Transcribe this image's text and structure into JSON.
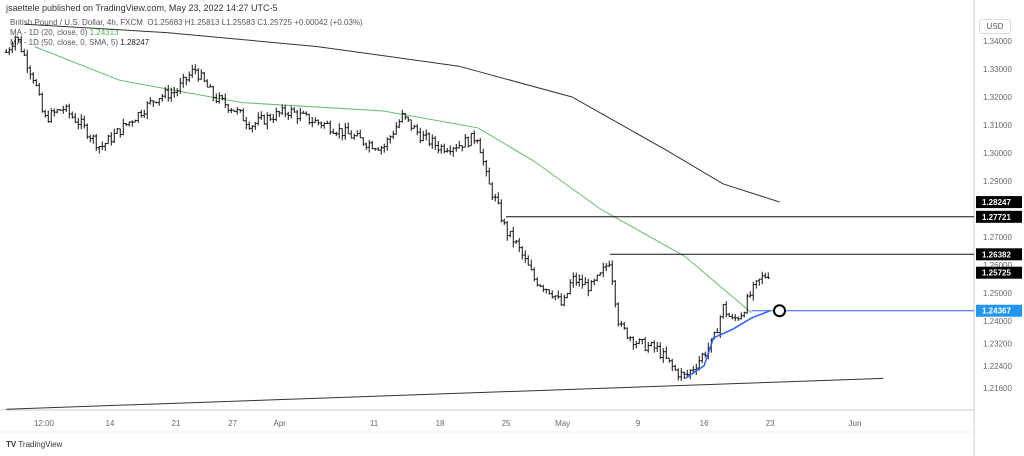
{
  "header": {
    "published": "jsaettele published on TradingView.com, May 23, 2022 14:27 UTC-5",
    "symbol": "British Pound / U.S. Dollar, 4h, FXCM",
    "ohlc": "O1.25683  H1.25813  L1.25583  C1.25725  +0.00042 (+0.03%)",
    "ma1_label": "MA - 1D (20, close, 0)",
    "ma1_value": "1.24313",
    "ma2_label": "MA - 1D (50, close, 0, SMA, 5)",
    "ma2_value": "1.28247"
  },
  "footer": {
    "brand": "TradingView"
  },
  "currency": "USD",
  "colors": {
    "ma20": "#66bb6a",
    "ma50": "#333333",
    "vwap": "#2962ff",
    "tag": "#000000",
    "tag_blue": "#2196f3"
  },
  "chart_data": {
    "type": "ohlc",
    "yaxis_ticks": [
      "1.34000",
      "1.33000",
      "1.32000",
      "1.31000",
      "1.30000",
      "1.29000",
      "1.27000",
      "1.26000",
      "1.25000",
      "1.24000",
      "1.23200",
      "1.22400",
      "1.21600"
    ],
    "xaxis_ticks": [
      {
        "label": "12:00",
        "date": "2022-03-07"
      },
      {
        "label": "14",
        "date": "2022-03-14"
      },
      {
        "label": "21",
        "date": "2022-03-21"
      },
      {
        "label": "27",
        "date": "2022-03-27"
      },
      {
        "label": "Apr",
        "date": "2022-04-01"
      },
      {
        "label": "11",
        "date": "2022-04-11"
      },
      {
        "label": "18",
        "date": "2022-04-18"
      },
      {
        "label": "25",
        "date": "2022-04-25"
      },
      {
        "label": "May",
        "date": "2022-05-01"
      },
      {
        "label": "9",
        "date": "2022-05-09"
      },
      {
        "label": "16",
        "date": "2022-05-16"
      },
      {
        "label": "23",
        "date": "2022-05-23"
      },
      {
        "label": "Jun",
        "date": "2022-06-01"
      }
    ],
    "price_tags": [
      {
        "value": "1.28247",
        "color": "#000000"
      },
      {
        "value": "1.27721",
        "color": "#000000"
      },
      {
        "value": "1.26382",
        "color": "#000000"
      },
      {
        "value": "1.25725",
        "color": "#000000"
      },
      {
        "value": "1.24367",
        "color": "#2196f3"
      }
    ],
    "close_path": [
      [
        "2022-03-03",
        1.336
      ],
      [
        "2022-03-04",
        1.342
      ],
      [
        "2022-03-06",
        1.326
      ],
      [
        "2022-03-07",
        1.312
      ],
      [
        "2022-03-09",
        1.316
      ],
      [
        "2022-03-11",
        1.31
      ],
      [
        "2022-03-13",
        1.302
      ],
      [
        "2022-03-15",
        1.308
      ],
      [
        "2022-03-17",
        1.314
      ],
      [
        "2022-03-19",
        1.32
      ],
      [
        "2022-03-21",
        1.322
      ],
      [
        "2022-03-23",
        1.33
      ],
      [
        "2022-03-25",
        1.32
      ],
      [
        "2022-03-27",
        1.316
      ],
      [
        "2022-03-29",
        1.31
      ],
      [
        "2022-03-31",
        1.313
      ],
      [
        "2022-04-02",
        1.315
      ],
      [
        "2022-04-04",
        1.312
      ],
      [
        "2022-04-06",
        1.31
      ],
      [
        "2022-04-08",
        1.307
      ],
      [
        "2022-04-10",
        1.304
      ],
      [
        "2022-04-12",
        1.302
      ],
      [
        "2022-04-14",
        1.313
      ],
      [
        "2022-04-16",
        1.306
      ],
      [
        "2022-04-18",
        1.302
      ],
      [
        "2022-04-20",
        1.303
      ],
      [
        "2022-04-22",
        1.306
      ],
      [
        "2022-04-23",
        1.29
      ],
      [
        "2022-04-24",
        1.282
      ],
      [
        "2022-04-25",
        1.272
      ],
      [
        "2022-04-26",
        1.268
      ],
      [
        "2022-04-28",
        1.255
      ],
      [
        "2022-04-30",
        1.25
      ],
      [
        "2022-05-01",
        1.245
      ],
      [
        "2022-05-02",
        1.255
      ],
      [
        "2022-05-04",
        1.252
      ],
      [
        "2022-05-05",
        1.256
      ],
      [
        "2022-05-06",
        1.262
      ],
      [
        "2022-05-07",
        1.238
      ],
      [
        "2022-05-09",
        1.232
      ],
      [
        "2022-05-11",
        1.23
      ],
      [
        "2022-05-13",
        1.222
      ],
      [
        "2022-05-14",
        1.22
      ],
      [
        "2022-05-15",
        1.224
      ],
      [
        "2022-05-17",
        1.233
      ],
      [
        "2022-05-18",
        1.245
      ],
      [
        "2022-05-19",
        1.24
      ],
      [
        "2022-05-20",
        1.243
      ],
      [
        "2022-05-21",
        1.25
      ],
      [
        "2022-05-22",
        1.255
      ],
      [
        "2022-05-23",
        1.2575
      ]
    ],
    "ma20": [
      [
        "2022-03-06",
        1.338
      ],
      [
        "2022-03-15",
        1.326
      ],
      [
        "2022-03-28",
        1.318
      ],
      [
        "2022-04-12",
        1.315
      ],
      [
        "2022-04-22",
        1.309
      ],
      [
        "2022-04-28",
        1.297
      ],
      [
        "2022-05-05",
        1.28
      ],
      [
        "2022-05-14",
        1.263
      ],
      [
        "2022-05-21",
        1.243
      ]
    ],
    "ma50": [
      [
        "2022-03-05",
        1.346
      ],
      [
        "2022-03-20",
        1.343
      ],
      [
        "2022-04-05",
        1.338
      ],
      [
        "2022-04-20",
        1.331
      ],
      [
        "2022-05-02",
        1.32
      ],
      [
        "2022-05-12",
        1.301
      ],
      [
        "2022-05-18",
        1.289
      ],
      [
        "2022-05-24",
        1.2825
      ]
    ],
    "vwap": [
      [
        "2022-05-14",
        1.2195
      ],
      [
        "2022-05-16",
        1.224
      ],
      [
        "2022-05-17",
        1.234
      ],
      [
        "2022-05-19",
        1.237
      ],
      [
        "2022-05-21",
        1.241
      ],
      [
        "2022-05-23",
        1.2437
      ]
    ],
    "levels": [
      {
        "from": "2022-04-25",
        "value": 1.27721
      },
      {
        "from": "2022-05-06",
        "value": 1.26382
      },
      {
        "from": "2022-05-21",
        "value": 1.24367
      }
    ],
    "trendline": [
      [
        "2022-03-03",
        1.2085
      ],
      [
        "2022-06-04",
        1.2195
      ]
    ],
    "marker": [
      "2022-05-24",
      1.24367
    ]
  }
}
